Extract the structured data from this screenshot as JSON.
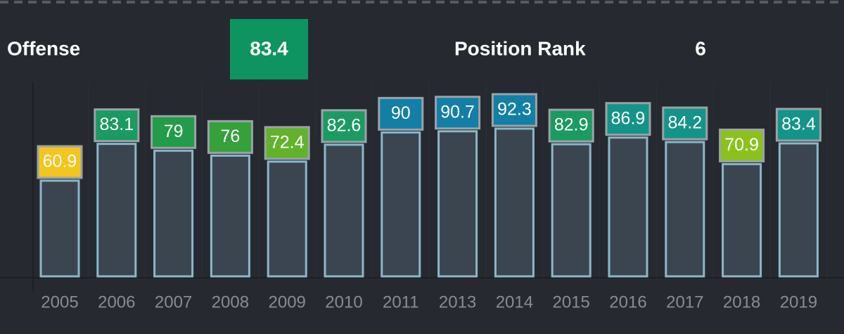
{
  "header": {
    "label": "Offense",
    "grade": 83.4,
    "rank_label": "Position Rank",
    "rank": 6
  },
  "chart_data": {
    "type": "bar",
    "categories": [
      "2005",
      "2006",
      "2007",
      "2008",
      "2009",
      "2010",
      "2011",
      "2013",
      "2014",
      "2015",
      "2016",
      "2017",
      "2018",
      "2019"
    ],
    "values": [
      60.9,
      83.1,
      79,
      76,
      72.4,
      82.6,
      90,
      90.7,
      92.3,
      82.9,
      86.9,
      84.2,
      70.9,
      83.4
    ],
    "colors": [
      "#f4c51c",
      "#1b9a62",
      "#239b48",
      "#35a03c",
      "#62b22c",
      "#1b9a62",
      "#137fa6",
      "#137fa6",
      "#137fa6",
      "#1b9a62",
      "#149489",
      "#149489",
      "#8cc11c",
      "#149489"
    ],
    "bar_color": "#3b4550",
    "bar_edge": "#8db6c9",
    "grade_color": "#0e9461"
  }
}
